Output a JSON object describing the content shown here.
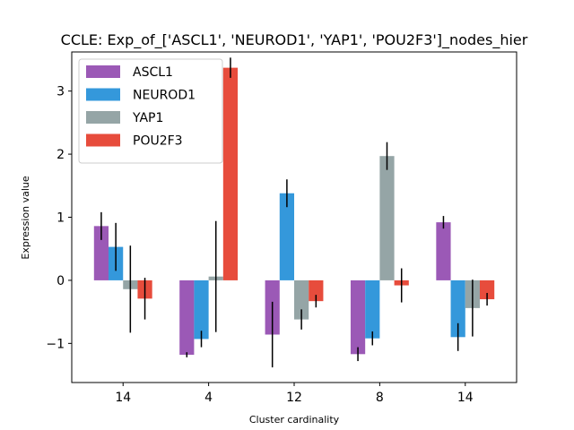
{
  "chart_data": {
    "type": "bar",
    "title": "CCLE: Exp_of_['ASCL1', 'NEUROD1', 'YAP1', 'POU2F3']_nodes_hier",
    "xlabel": "Cluster cardinality",
    "ylabel": "Expression value",
    "categories": [
      "14",
      "4",
      "12",
      "8",
      "14"
    ],
    "ylim": [
      -1.62,
      3.62
    ],
    "yticks": [
      -1,
      0,
      1,
      2,
      3
    ],
    "ytick_labels": [
      "−1",
      "0",
      "1",
      "2",
      "3"
    ],
    "legend_position": "top-left",
    "series": [
      {
        "name": "ASCL1",
        "color": "#9b59b6",
        "values": [
          0.86,
          -1.18,
          -0.86,
          -1.17,
          0.92
        ],
        "errors": [
          0.22,
          0.04,
          0.52,
          0.11,
          0.1
        ]
      },
      {
        "name": "NEUROD1",
        "color": "#3498db",
        "values": [
          0.53,
          -0.93,
          1.38,
          -0.92,
          -0.9
        ],
        "errors": [
          0.38,
          0.13,
          0.22,
          0.11,
          0.22
        ]
      },
      {
        "name": "YAP1",
        "color": "#95a5a6",
        "values": [
          -0.14,
          0.06,
          -0.62,
          1.97,
          -0.44
        ],
        "errors": [
          0.69,
          0.88,
          0.16,
          0.22,
          0.45
        ]
      },
      {
        "name": "POU2F3",
        "color": "#e74c3c",
        "values": [
          -0.29,
          3.37,
          -0.33,
          -0.08,
          -0.3
        ],
        "errors": [
          0.33,
          0.16,
          0.1,
          0.27,
          0.1
        ]
      }
    ]
  }
}
